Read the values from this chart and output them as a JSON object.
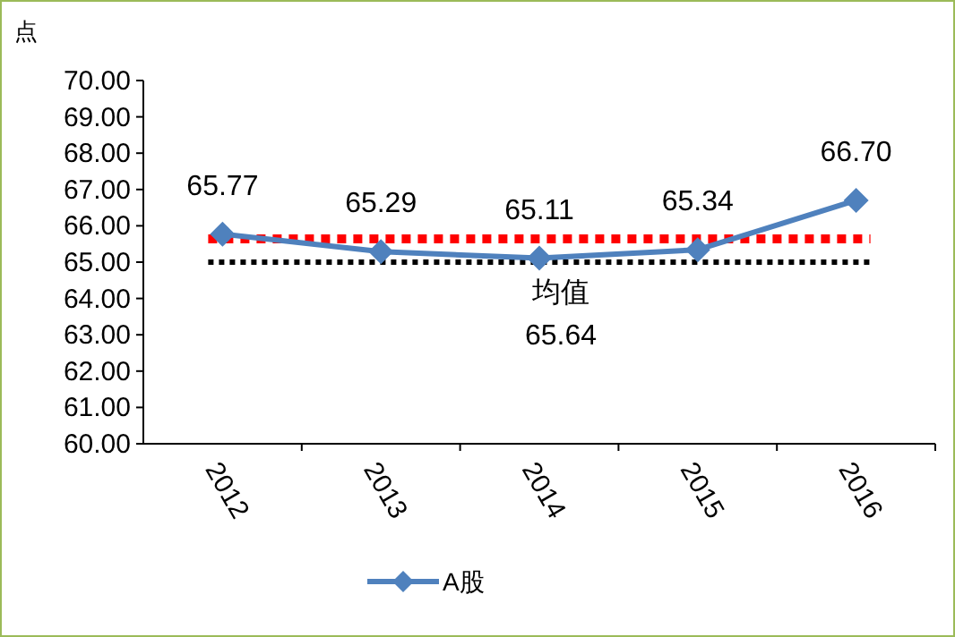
{
  "chart_data": {
    "type": "line",
    "ylabel": "点",
    "categories": [
      "2012",
      "2013",
      "2014",
      "2015",
      "2016"
    ],
    "series": [
      {
        "name": "A股",
        "color": "#4f81bd",
        "values": [
          65.77,
          65.29,
          65.11,
          65.34,
          66.7
        ],
        "value_labels": [
          "65.77",
          "65.29",
          "65.11",
          "65.34",
          "66.70"
        ]
      }
    ],
    "ylim": [
      60,
      70
    ],
    "yticks": [
      {
        "value": 60,
        "label": "60.00"
      },
      {
        "value": 61,
        "label": "61.00"
      },
      {
        "value": 62,
        "label": "62.00"
      },
      {
        "value": 63,
        "label": "63.00"
      },
      {
        "value": 64,
        "label": "64.00"
      },
      {
        "value": 65,
        "label": "65.00"
      },
      {
        "value": 66,
        "label": "66.00"
      },
      {
        "value": 67,
        "label": "67.00"
      },
      {
        "value": 68,
        "label": "68.00"
      },
      {
        "value": 69,
        "label": "69.00"
      },
      {
        "value": 70,
        "label": "70.00"
      }
    ],
    "ref_lines": [
      {
        "axis": "y",
        "value": 65.64,
        "label": "均值\n65.64",
        "color": "#ff0000",
        "line_style": "dotted"
      },
      {
        "axis": "y",
        "value": 65.0,
        "label": null,
        "color": "#000000",
        "line_style": "dotted"
      }
    ],
    "marker": "diamond",
    "line_style": "solid",
    "legend": "bottom",
    "grid": false
  }
}
